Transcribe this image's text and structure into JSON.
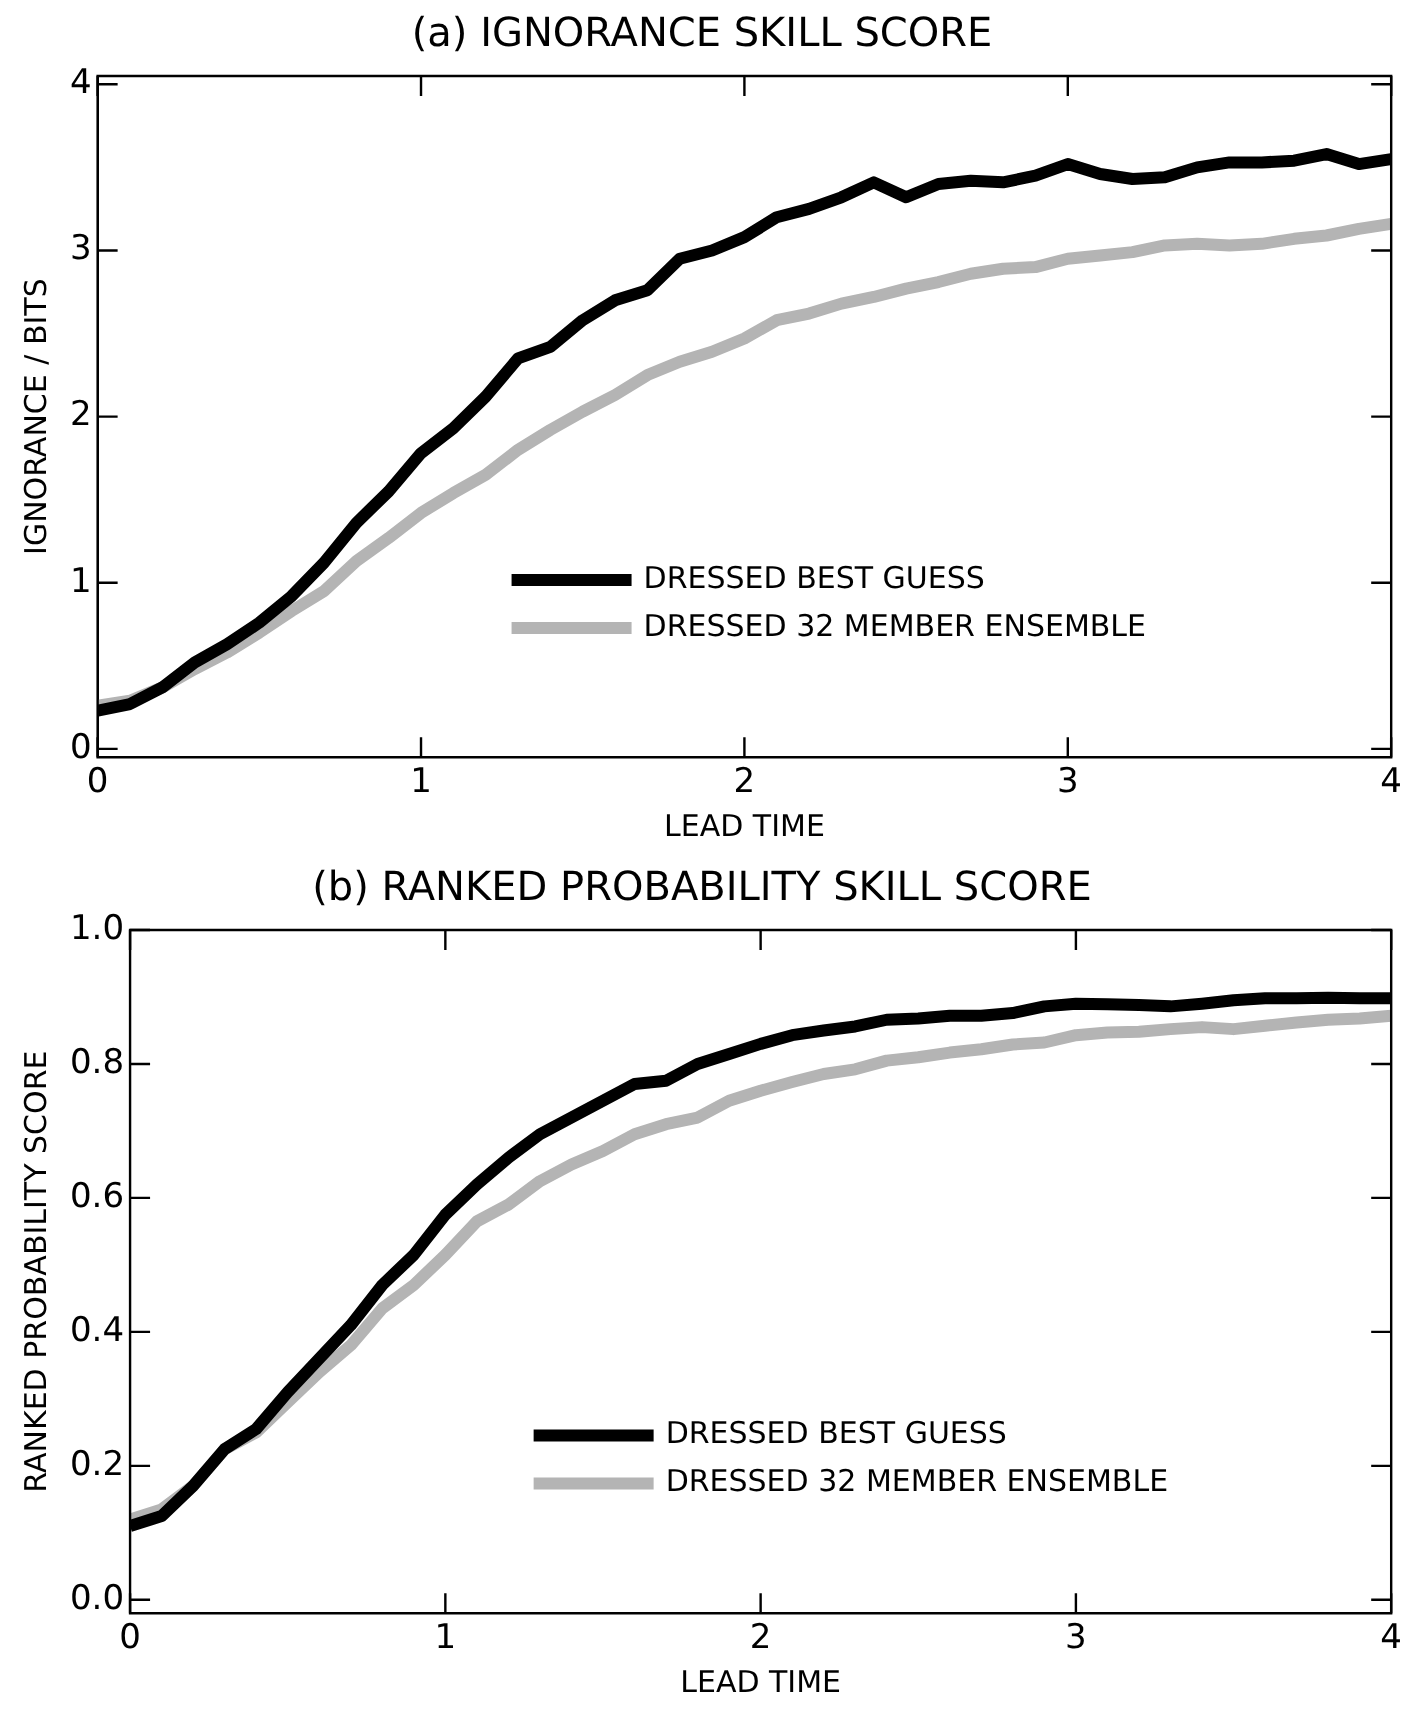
{
  "chart_data": [
    {
      "type": "line",
      "title": "(a) IGNORANCE SKILL SCORE",
      "xlabel": "LEAD TIME",
      "ylabel": "IGNORANCE / BITS",
      "x": [
        0,
        0.1,
        0.2,
        0.3,
        0.4,
        0.5,
        0.6,
        0.7,
        0.8,
        0.9,
        1,
        1.1,
        1.2,
        1.3,
        1.4,
        1.5,
        1.6,
        1.7,
        1.8,
        1.9,
        2,
        2.1,
        2.2,
        2.3,
        2.4,
        2.5,
        2.6,
        2.7,
        2.8,
        2.9,
        3,
        3.1,
        3.2,
        3.3,
        3.4,
        3.5,
        3.6,
        3.7,
        3.8,
        3.9,
        4
      ],
      "series": [
        {
          "name": "DRESSED BEST GUESS",
          "color": "#000000",
          "values": [
            0.23,
            0.27,
            0.37,
            0.52,
            0.63,
            0.76,
            0.92,
            1.12,
            1.36,
            1.55,
            1.78,
            1.93,
            2.12,
            2.35,
            2.42,
            2.58,
            2.7,
            2.76,
            2.95,
            3.0,
            3.08,
            3.2,
            3.25,
            3.32,
            3.41,
            3.32,
            3.4,
            3.42,
            3.41,
            3.45,
            3.52,
            3.46,
            3.43,
            3.44,
            3.5,
            3.53,
            3.53,
            3.54,
            3.58,
            3.52,
            3.55
          ]
        },
        {
          "name": "DRESSED 32 MEMBER ENSEMBLE",
          "color": "#b4b4b4",
          "values": [
            0.26,
            0.29,
            0.37,
            0.48,
            0.58,
            0.7,
            0.83,
            0.95,
            1.13,
            1.27,
            1.42,
            1.54,
            1.65,
            1.8,
            1.92,
            2.03,
            2.13,
            2.25,
            2.33,
            2.39,
            2.47,
            2.58,
            2.62,
            2.68,
            2.72,
            2.77,
            2.81,
            2.86,
            2.89,
            2.9,
            2.95,
            2.97,
            2.99,
            3.03,
            3.04,
            3.03,
            3.04,
            3.07,
            3.09,
            3.13,
            3.16
          ]
        }
      ],
      "xlim": [
        0,
        4
      ],
      "xticks": [
        0,
        1,
        2,
        3,
        4
      ],
      "ylim": [
        -0.05,
        4.05
      ],
      "yticks": [
        0,
        1,
        2,
        3,
        4
      ],
      "legend": "bottom",
      "marker": "none",
      "line_style": "solid",
      "grid": false
    },
    {
      "type": "line",
      "title": "(b) RANKED PROBABILITY SKILL SCORE",
      "xlabel": "LEAD TIME",
      "ylabel": "RANKED PROBABILITY SCORE",
      "x": [
        0,
        0.1,
        0.2,
        0.3,
        0.4,
        0.5,
        0.6,
        0.7,
        0.8,
        0.9,
        1,
        1.1,
        1.2,
        1.3,
        1.4,
        1.5,
        1.6,
        1.7,
        1.8,
        1.9,
        2,
        2.1,
        2.2,
        2.3,
        2.4,
        2.5,
        2.6,
        2.7,
        2.8,
        2.9,
        3,
        3.1,
        3.2,
        3.3,
        3.4,
        3.5,
        3.6,
        3.7,
        3.8,
        3.9,
        4
      ],
      "series": [
        {
          "name": "DRESSED BEST GUESS",
          "color": "#000000",
          "values": [
            0.11,
            0.125,
            0.17,
            0.225,
            0.255,
            0.31,
            0.36,
            0.41,
            0.47,
            0.515,
            0.575,
            0.62,
            0.66,
            0.695,
            0.72,
            0.745,
            0.77,
            0.775,
            0.8,
            0.815,
            0.83,
            0.843,
            0.85,
            0.856,
            0.866,
            0.868,
            0.872,
            0.872,
            0.876,
            0.886,
            0.89,
            0.889,
            0.888,
            0.886,
            0.89,
            0.895,
            0.898,
            0.898,
            0.899,
            0.898,
            0.898
          ]
        },
        {
          "name": "DRESSED 32 MEMBER ENSEMBLE",
          "color": "#b4b4b4",
          "values": [
            0.12,
            0.135,
            0.17,
            0.225,
            0.25,
            0.295,
            0.34,
            0.38,
            0.435,
            0.47,
            0.515,
            0.565,
            0.59,
            0.625,
            0.65,
            0.67,
            0.695,
            0.71,
            0.72,
            0.745,
            0.76,
            0.773,
            0.785,
            0.792,
            0.805,
            0.81,
            0.817,
            0.822,
            0.829,
            0.832,
            0.843,
            0.847,
            0.848,
            0.852,
            0.855,
            0.852,
            0.857,
            0.862,
            0.866,
            0.868,
            0.872
          ]
        }
      ],
      "xlim": [
        0,
        4
      ],
      "xticks": [
        0,
        1,
        2,
        3,
        4
      ],
      "ylim": [
        -0.02,
        1.0
      ],
      "yticks": [
        {
          "value": 0,
          "label": "0.0"
        },
        {
          "value": 0.2,
          "label": "0.2"
        },
        {
          "value": 0.4,
          "label": "0.4"
        },
        {
          "value": 0.6,
          "label": "0.6"
        },
        {
          "value": 0.8,
          "label": "0.8"
        },
        {
          "value": 1,
          "label": "1.0"
        }
      ],
      "legend": "bottom",
      "marker": "none",
      "line_style": "solid",
      "grid": false
    }
  ]
}
